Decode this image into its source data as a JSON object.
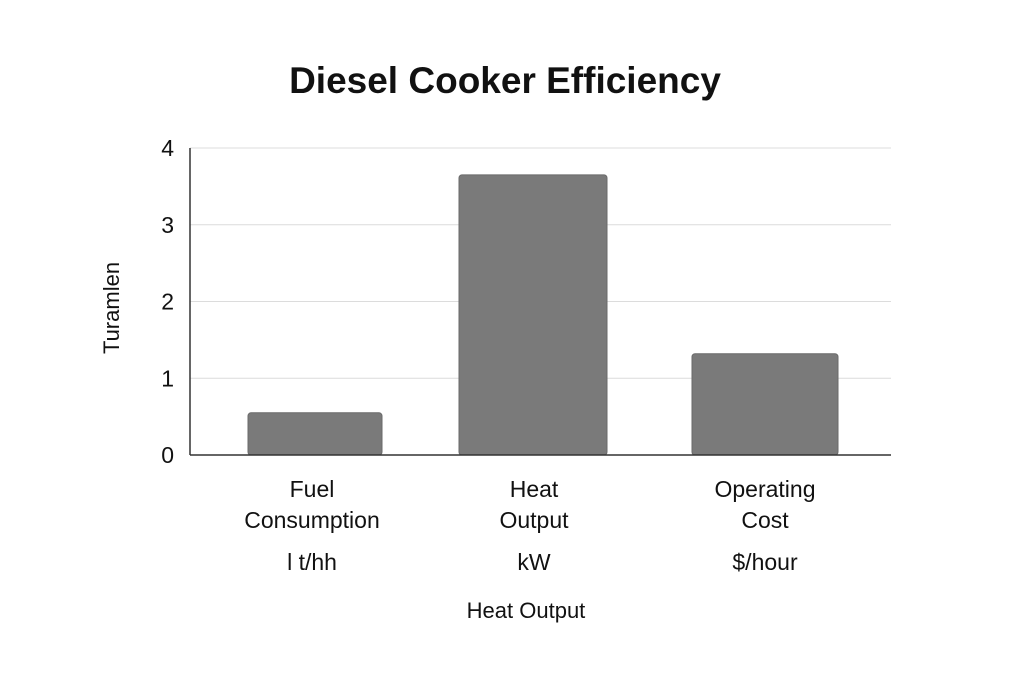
{
  "chart_data": {
    "type": "bar",
    "title": "Diesel Cooker Efficiency",
    "xlabel": "Heat Output",
    "ylabel": "Turamlen",
    "ylim": [
      0,
      4
    ],
    "yticks": [
      "0",
      "1",
      "2",
      "3",
      "4"
    ],
    "grid": true,
    "categories": [
      {
        "label_lines": [
          "Fuel",
          "Consumption"
        ],
        "unit": "l t/hh"
      },
      {
        "label_lines": [
          "Heat",
          "Output"
        ],
        "unit": "kW"
      },
      {
        "label_lines": [
          "Operating",
          "Cost"
        ],
        "unit": "$/hour"
      }
    ],
    "values": [
      0.55,
      3.65,
      1.32
    ],
    "colors": {
      "bar": "#7a7a7a",
      "bar_edge": "#6a6a6a"
    }
  }
}
